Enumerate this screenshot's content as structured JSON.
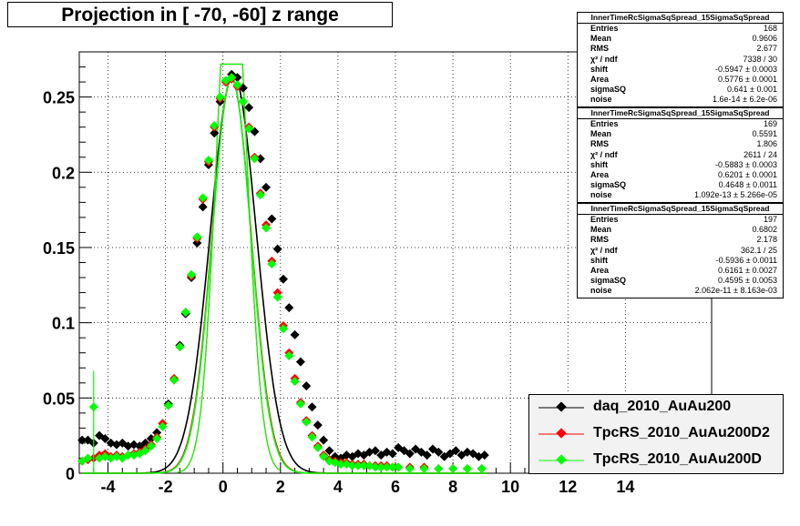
{
  "title": "Projection in [ -70, -60] z range",
  "stats": [
    {
      "name": "InnerTimeRcSigmaSqSpread_15SigmaSqSpread",
      "rows": [
        {
          "k": "Entries",
          "v": "168"
        },
        {
          "k": "Mean",
          "v": "0.9606"
        },
        {
          "k": "RMS",
          "v": "2.677"
        },
        {
          "k": "χ² / ndf",
          "v": "7338 / 30"
        },
        {
          "k": "shift",
          "v": "-0.5947 ± 0.0003"
        },
        {
          "k": "Area",
          "v": "0.5776 ± 0.0001"
        },
        {
          "k": "sigmaSQ",
          "v": "0.641 ± 0.001"
        },
        {
          "k": "noise",
          "v": "1.6e-14 ± 6.2e-06"
        }
      ]
    },
    {
      "name": "InnerTimeRcSigmaSqSpread_15SigmaSqSpread",
      "rows": [
        {
          "k": "Entries",
          "v": "169"
        },
        {
          "k": "Mean",
          "v": "0.5591"
        },
        {
          "k": "RMS",
          "v": "1.806"
        },
        {
          "k": "χ² / ndf",
          "v": "2611 / 24"
        },
        {
          "k": "shift",
          "v": "-0.5883 ± 0.0003"
        },
        {
          "k": "Area",
          "v": "0.6201 ± 0.0001"
        },
        {
          "k": "sigmaSQ",
          "v": "0.4648 ± 0.0011"
        },
        {
          "k": "noise",
          "v": "1.092e-13 ± 5.266e-05"
        }
      ]
    },
    {
      "name": "InnerTimeRcSigmaSqSpread_15SigmaSqSpread",
      "rows": [
        {
          "k": "Entries",
          "v": "197"
        },
        {
          "k": "Mean",
          "v": "0.6802"
        },
        {
          "k": "RMS",
          "v": "2.178"
        },
        {
          "k": "χ² / ndf",
          "v": "362.1 / 25"
        },
        {
          "k": "shift",
          "v": "-0.5936 ± 0.0011"
        },
        {
          "k": "Area",
          "v": "0.6161 ± 0.0027"
        },
        {
          "k": "sigmaSQ",
          "v": "0.4595 ± 0.0053"
        },
        {
          "k": "noise",
          "v": "2.062e-11 ± 8.163e-03"
        }
      ]
    }
  ],
  "chart_data": {
    "type": "scatter",
    "title": "Projection in [ -70, -60] z range",
    "xlabel": "",
    "ylabel": "",
    "xlim": [
      -5,
      17
    ],
    "ylim": [
      0,
      0.28
    ],
    "xticks": [
      -4,
      -2,
      0,
      2,
      4,
      6,
      8,
      10,
      12,
      14
    ],
    "yticks": [
      0,
      0.05,
      0.1,
      0.15,
      0.2,
      0.25
    ],
    "ytick_labels": [
      "0",
      "0.05",
      "0.1",
      "0.15",
      "0.2",
      "0.25"
    ],
    "grid": true,
    "legend_position": "bottom-right",
    "series": [
      {
        "name": "daq_2010_AuAu200",
        "color": "#000000",
        "x": [
          -4.9,
          -4.7,
          -4.5,
          -4.3,
          -4.1,
          -3.9,
          -3.7,
          -3.5,
          -3.3,
          -3.1,
          -2.9,
          -2.7,
          -2.5,
          -2.3,
          -2.1,
          -1.9,
          -1.7,
          -1.5,
          -1.3,
          -1.1,
          -0.9,
          -0.7,
          -0.5,
          -0.3,
          -0.1,
          0.1,
          0.3,
          0.5,
          0.7,
          0.9,
          1.1,
          1.3,
          1.5,
          1.7,
          1.9,
          2.1,
          2.3,
          2.5,
          2.7,
          2.9,
          3.1,
          3.3,
          3.5,
          3.7,
          3.9,
          4.1,
          4.3,
          4.5,
          4.7,
          4.9,
          5.1,
          5.3,
          5.5,
          5.7,
          5.9,
          6.1,
          6.3,
          6.5,
          6.7,
          6.9,
          7.1,
          7.3,
          7.5,
          7.7,
          7.9,
          8.1,
          8.3,
          8.5,
          8.7,
          8.9,
          9.1
        ],
        "y": [
          0.022,
          0.022,
          0.02,
          0.025,
          0.023,
          0.02,
          0.019,
          0.02,
          0.018,
          0.019,
          0.018,
          0.02,
          0.023,
          0.027,
          0.033,
          0.046,
          0.062,
          0.085,
          0.106,
          0.13,
          0.153,
          0.177,
          0.205,
          0.226,
          0.247,
          0.26,
          0.265,
          0.263,
          0.256,
          0.243,
          0.227,
          0.209,
          0.19,
          0.169,
          0.149,
          0.129,
          0.11,
          0.092,
          0.074,
          0.058,
          0.044,
          0.032,
          0.022,
          0.015,
          0.011,
          0.01,
          0.012,
          0.011,
          0.013,
          0.012,
          0.014,
          0.015,
          0.012,
          0.014,
          0.013,
          0.017,
          0.015,
          0.013,
          0.016,
          0.014,
          0.012,
          0.016,
          0.014,
          0.011,
          0.013,
          0.015,
          0.012,
          0.014,
          0.013,
          0.011,
          0.012
        ]
      },
      {
        "name": "TpcRS_2010_AuAu200D2",
        "color": "#ff0000",
        "x": [
          -4.9,
          -4.7,
          -4.5,
          -4.3,
          -4.1,
          -3.9,
          -3.7,
          -3.5,
          -3.3,
          -3.1,
          -2.9,
          -2.7,
          -2.5,
          -2.3,
          -2.1,
          -1.9,
          -1.7,
          -1.5,
          -1.3,
          -1.1,
          -0.9,
          -0.7,
          -0.5,
          -0.3,
          -0.1,
          0.1,
          0.3,
          0.5,
          0.7,
          0.9,
          1.1,
          1.3,
          1.5,
          1.7,
          1.9,
          2.1,
          2.3,
          2.5,
          2.7,
          2.9,
          3.1,
          3.3,
          3.5,
          3.7,
          3.9,
          4.1,
          4.3,
          4.5,
          4.7,
          4.9,
          5.1,
          5.3,
          5.5,
          5.7,
          5.9,
          6.1,
          6.5,
          7.0,
          7.5,
          8.0,
          8.5,
          9.0
        ],
        "y": [
          0.008,
          0.009,
          0.01,
          0.012,
          0.013,
          0.011,
          0.012,
          0.011,
          0.012,
          0.013,
          0.014,
          0.016,
          0.019,
          0.024,
          0.033,
          0.045,
          0.063,
          0.084,
          0.107,
          0.131,
          0.156,
          0.182,
          0.207,
          0.23,
          0.249,
          0.26,
          0.262,
          0.257,
          0.247,
          0.23,
          0.21,
          0.186,
          0.165,
          0.141,
          0.12,
          0.098,
          0.08,
          0.063,
          0.047,
          0.035,
          0.025,
          0.018,
          0.012,
          0.009,
          0.008,
          0.007,
          0.007,
          0.006,
          0.006,
          0.006,
          0.005,
          0.005,
          0.005,
          0.005,
          0.004,
          0.004,
          0.004,
          0.004,
          0.003,
          0.003,
          0.003,
          0.003
        ]
      },
      {
        "name": "TpcRS_2010_AuAu200D",
        "color": "#00ff00",
        "x": [
          -4.9,
          -4.7,
          -4.5,
          -4.3,
          -4.1,
          -3.9,
          -3.7,
          -3.5,
          -3.3,
          -3.1,
          -2.9,
          -2.7,
          -2.5,
          -2.3,
          -2.1,
          -1.9,
          -1.7,
          -1.5,
          -1.3,
          -1.1,
          -0.9,
          -0.7,
          -0.5,
          -0.3,
          -0.1,
          0.1,
          0.3,
          0.5,
          0.7,
          0.9,
          1.1,
          1.3,
          1.5,
          1.7,
          1.9,
          2.1,
          2.3,
          2.5,
          2.7,
          2.9,
          3.1,
          3.3,
          3.5,
          3.7,
          3.9,
          4.1,
          4.3,
          4.5,
          4.7,
          4.9,
          5.1,
          5.3,
          5.5,
          5.7,
          5.9,
          6.1,
          6.5,
          7.0,
          7.5,
          8.0,
          8.5,
          9.0
        ],
        "y": [
          0.008,
          0.01,
          0.044,
          0.01,
          0.011,
          0.01,
          0.011,
          0.01,
          0.012,
          0.012,
          0.013,
          0.015,
          0.018,
          0.023,
          0.031,
          0.045,
          0.062,
          0.084,
          0.107,
          0.132,
          0.157,
          0.183,
          0.208,
          0.231,
          0.25,
          0.261,
          0.263,
          0.258,
          0.247,
          0.229,
          0.209,
          0.185,
          0.163,
          0.139,
          0.117,
          0.096,
          0.078,
          0.061,
          0.046,
          0.034,
          0.024,
          0.017,
          0.011,
          0.008,
          0.007,
          0.006,
          0.006,
          0.005,
          0.005,
          0.005,
          0.005,
          0.004,
          0.004,
          0.004,
          0.004,
          0.004,
          0.003,
          0.003,
          0.003,
          0.003,
          0.003,
          0.003
        ]
      }
    ]
  }
}
